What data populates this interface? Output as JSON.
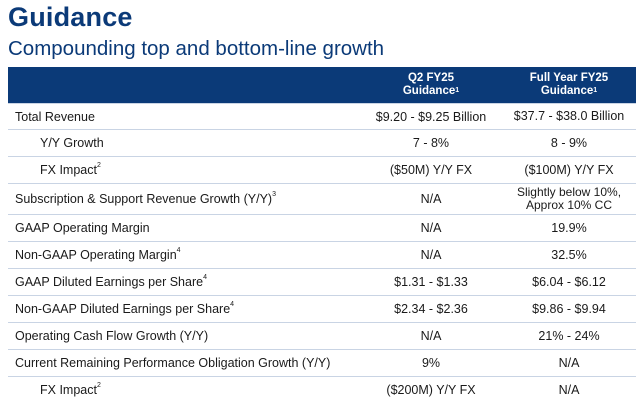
{
  "header": {
    "title": "Guidance",
    "subtitle": "Compounding top and bottom-line growth"
  },
  "table": {
    "columns": [
      {
        "line1": "Q2 FY25",
        "line2": "Guidance",
        "sup": "1"
      },
      {
        "line1": "Full Year FY25",
        "line2": "Guidance",
        "sup": "1"
      }
    ],
    "rows": [
      {
        "label": "Total Revenue",
        "sup": "",
        "q2": "$9.20 - $9.25 Billion",
        "fy_line1": "$37.7 - $38.0 Billion",
        "fy_line2": ""
      },
      {
        "label": "Y/Y Growth",
        "sup": "",
        "q2": "7 - 8%",
        "fy_line1": "8 - 9%",
        "fy_line2": ""
      },
      {
        "label": "FX Impact",
        "sup": "2",
        "q2": "($50M) Y/Y FX",
        "fy_line1": "($100M) Y/Y FX",
        "fy_line2": ""
      },
      {
        "label": "Subscription & Support Revenue Growth (Y/Y)",
        "sup": "3",
        "q2": "N/A",
        "fy_line1": "Slightly below 10%,",
        "fy_line2": "Approx 10% CC"
      },
      {
        "label": "GAAP Operating Margin",
        "sup": "",
        "q2": "N/A",
        "fy_line1": "19.9%",
        "fy_line2": ""
      },
      {
        "label": "Non-GAAP Operating Margin",
        "sup": "4",
        "q2": "N/A",
        "fy_line1": "32.5%",
        "fy_line2": ""
      },
      {
        "label": "GAAP Diluted Earnings per Share",
        "sup": "4",
        "q2": "$1.31 - $1.33",
        "fy_line1": "$6.04 - $6.12",
        "fy_line2": ""
      },
      {
        "label": "Non-GAAP Diluted Earnings per Share",
        "sup": "4",
        "q2": "$2.34 - $2.36",
        "fy_line1": "$9.86 - $9.94",
        "fy_line2": ""
      },
      {
        "label": "Operating Cash Flow Growth (Y/Y)",
        "sup": "",
        "q2": "N/A",
        "fy_line1": "21% - 24%",
        "fy_line2": ""
      },
      {
        "label": "Current Remaining Performance Obligation Growth (Y/Y)",
        "sup": "",
        "q2": "9%",
        "fy_line1": "N/A",
        "fy_line2": ""
      },
      {
        "label": "FX Impact",
        "sup": "2",
        "q2": "($200M) Y/Y FX",
        "fy_line1": "N/A",
        "fy_line2": ""
      }
    ]
  },
  "colors": {
    "brand_navy": "#0b3a78",
    "row_divider": "#c9d4e4"
  }
}
